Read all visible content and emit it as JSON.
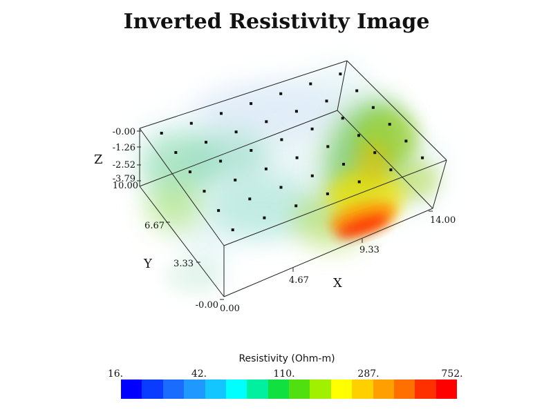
{
  "title": "Inverted Resistivity Image",
  "axes": {
    "x": {
      "label": "X",
      "ticks": [
        "0.00",
        "4.67",
        "9.33",
        "14.00"
      ]
    },
    "y": {
      "label": "Y",
      "ticks": [
        "-0.00",
        "3.33",
        "6.67",
        "10.00"
      ]
    },
    "z": {
      "label": "Z",
      "ticks": [
        "-0.00",
        "-1.26",
        "-2.52",
        "-3.79"
      ]
    }
  },
  "colorbar": {
    "title": "Resistivity (Ohm-m)",
    "ticks": [
      "16.",
      "42.",
      "110.",
      "287.",
      "752."
    ],
    "colors": [
      "#0000ff",
      "#0a3cff",
      "#1a6cff",
      "#1f99ff",
      "#13c6ff",
      "#00ffff",
      "#00f0a0",
      "#10e040",
      "#50e010",
      "#a0f000",
      "#ffff00",
      "#ffd000",
      "#ffa000",
      "#ff7000",
      "#ff3000",
      "#ff0000"
    ]
  },
  "colors": {
    "background": "#ffffff",
    "box_edge": "#222222",
    "electrode": "#111111"
  }
}
